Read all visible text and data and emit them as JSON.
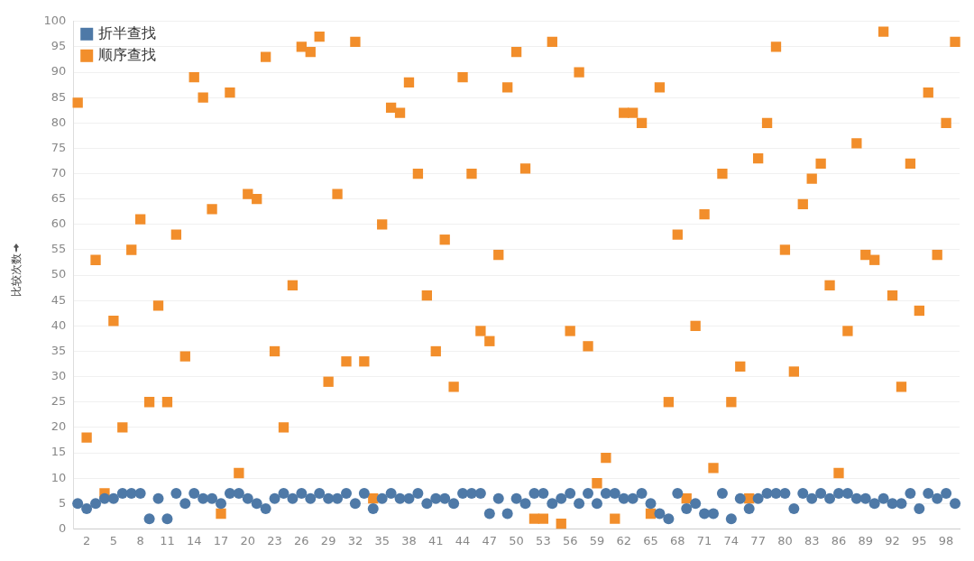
{
  "chart_data": {
    "type": "scatter",
    "ylabel": "比较次数",
    "categories": [
      null,
      "2",
      null,
      null,
      "5",
      null,
      null,
      "8",
      null,
      null,
      "11",
      null,
      null,
      "14",
      null,
      null,
      "17",
      null,
      null,
      "20",
      null,
      null,
      "23",
      null,
      null,
      "26",
      null,
      null,
      "29",
      null,
      null,
      "32",
      null,
      null,
      "35",
      null,
      null,
      "38",
      null,
      null,
      "41",
      null,
      null,
      "44",
      null,
      null,
      "47",
      null,
      null,
      "50",
      null,
      null,
      "53",
      null,
      null,
      "56",
      null,
      null,
      "59",
      null,
      null,
      "62",
      null,
      null,
      "65",
      null,
      null,
      "68",
      null,
      null,
      "71",
      null,
      null,
      "74",
      null,
      null,
      "77",
      null,
      null,
      "80",
      null,
      null,
      "83",
      null,
      null,
      "86",
      null,
      null,
      "89",
      null,
      null,
      "92",
      null,
      null,
      "95",
      null,
      null,
      "98",
      null
    ],
    "series": [
      {
        "name": "折半查找",
        "color": "#4e79a7",
        "marker": "circle",
        "values": [
          5,
          4,
          5,
          6,
          6,
          7,
          7,
          7,
          2,
          6,
          2,
          7,
          5,
          7,
          6,
          6,
          5,
          7,
          7,
          6,
          5,
          4,
          6,
          7,
          6,
          7,
          6,
          7,
          6,
          6,
          7,
          5,
          7,
          4,
          6,
          7,
          6,
          6,
          7,
          5,
          6,
          6,
          5,
          7,
          7,
          7,
          3,
          6,
          3,
          6,
          5,
          7,
          7,
          5,
          6,
          7,
          5,
          7,
          5,
          7,
          7,
          6,
          6,
          7,
          5,
          3,
          2,
          7,
          4,
          5,
          3,
          3,
          7,
          2,
          6,
          4,
          6,
          7,
          7,
          7,
          4,
          7,
          6,
          7,
          6,
          7,
          7,
          6,
          6,
          5,
          6,
          5,
          5,
          7,
          4,
          7,
          6,
          7,
          5
        ]
      },
      {
        "name": "顺序查找",
        "color": "#f28e2b",
        "marker": "square",
        "values": [
          84,
          18,
          53,
          7,
          41,
          20,
          55,
          61,
          25,
          44,
          25,
          58,
          34,
          89,
          85,
          63,
          3,
          86,
          11,
          66,
          65,
          93,
          35,
          20,
          48,
          95,
          94,
          97,
          29,
          66,
          33,
          96,
          33,
          6,
          60,
          83,
          82,
          88,
          70,
          46,
          35,
          57,
          28,
          89,
          70,
          39,
          37,
          54,
          87,
          94,
          71,
          2,
          2,
          96,
          1,
          39,
          90,
          36,
          9,
          14,
          2,
          82,
          82,
          80,
          3,
          87,
          25,
          58,
          6,
          40,
          62,
          12,
          70,
          25,
          32,
          6,
          73,
          80,
          95,
          55,
          31,
          64,
          69,
          72,
          48,
          11,
          39,
          76,
          54,
          53,
          98,
          46,
          28,
          72,
          43,
          86,
          54,
          80,
          96
        ]
      }
    ],
    "ylim": [
      0,
      100
    ],
    "yticks": [
      0,
      5,
      10,
      15,
      20,
      25,
      30,
      35,
      40,
      45,
      50,
      55,
      60,
      65,
      70,
      75,
      80,
      85,
      90,
      95,
      100
    ],
    "grid": "y",
    "legend": "top left"
  }
}
